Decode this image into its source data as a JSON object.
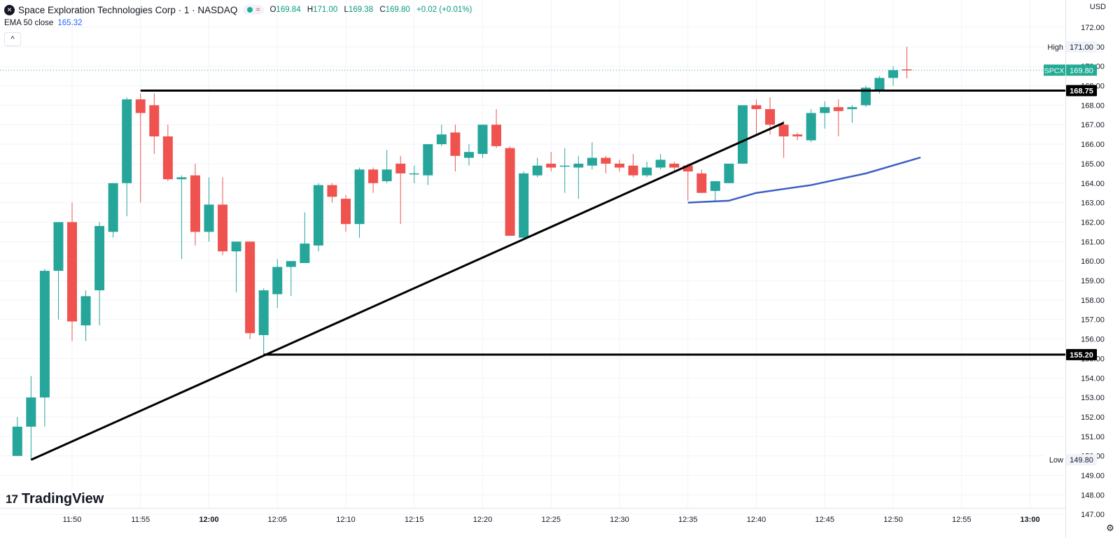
{
  "header": {
    "logo_glyph": "✕",
    "title": "Space Exploration Technologies Corp · 1 · NASDAQ",
    "signal_glyph": "≈",
    "o_label": "O",
    "o": "169.84",
    "h_label": "H",
    "h": "171.00",
    "l_label": "L",
    "l": "169.38",
    "c_label": "C",
    "c": "169.80",
    "change": "+0.02 (+0.01%)"
  },
  "indicator": {
    "label": "EMA 50 close",
    "value": "165.32"
  },
  "collapse_glyph": "^",
  "currency": "USD",
  "brand": {
    "mark": "17",
    "name": "TradingView"
  },
  "settings_icon": "gear-icon",
  "colors": {
    "up": "#26a69a",
    "down": "#ef5350",
    "ema": "#3d5fc4",
    "trend": "#000000",
    "last_price": "#22ab94"
  },
  "chart_data": {
    "type": "candlestick",
    "symbol": "SPCX",
    "x_ticks": [
      "11:50",
      "11:55",
      "12:00",
      "12:05",
      "12:10",
      "12:15",
      "12:20",
      "12:25",
      "12:30",
      "12:35",
      "12:40",
      "12:45",
      "12:50",
      "12:55",
      "13:00"
    ],
    "y_ticks": [
      "147.00",
      "148.00",
      "149.00",
      "150.00",
      "151.00",
      "152.00",
      "153.00",
      "154.00",
      "155.00",
      "156.00",
      "157.00",
      "158.00",
      "159.00",
      "160.00",
      "161.00",
      "162.00",
      "163.00",
      "164.00",
      "165.00",
      "166.00",
      "167.00",
      "168.00",
      "169.00",
      "170.00",
      "171.00",
      "172.00"
    ],
    "ylim": [
      146.4,
      172.7
    ],
    "candles": [
      {
        "t": "11:46",
        "o": 150.0,
        "h": 152.0,
        "l": 150.0,
        "c": 151.5
      },
      {
        "t": "11:47",
        "o": 151.5,
        "h": 154.1,
        "l": 149.8,
        "c": 153.0
      },
      {
        "t": "11:48",
        "o": 153.0,
        "h": 159.6,
        "l": 151.5,
        "c": 159.5
      },
      {
        "t": "11:49",
        "o": 159.5,
        "h": 162.0,
        "l": 157.0,
        "c": 162.0
      },
      {
        "t": "11:50",
        "o": 162.0,
        "h": 163.0,
        "l": 155.9,
        "c": 156.9
      },
      {
        "t": "11:51",
        "o": 156.7,
        "h": 158.5,
        "l": 155.9,
        "c": 158.2
      },
      {
        "t": "11:52",
        "o": 158.5,
        "h": 162.0,
        "l": 156.7,
        "c": 161.8
      },
      {
        "t": "11:53",
        "o": 161.5,
        "h": 164.0,
        "l": 161.2,
        "c": 164.0
      },
      {
        "t": "11:54",
        "o": 164.0,
        "h": 168.4,
        "l": 162.3,
        "c": 168.3
      },
      {
        "t": "11:55",
        "o": 168.3,
        "h": 168.6,
        "l": 163.0,
        "c": 167.6
      },
      {
        "t": "11:56",
        "o": 168.0,
        "h": 168.6,
        "l": 165.5,
        "c": 166.4
      },
      {
        "t": "11:57",
        "o": 166.4,
        "h": 167.0,
        "l": 164.1,
        "c": 164.2
      },
      {
        "t": "11:58",
        "o": 164.2,
        "h": 164.4,
        "l": 160.1,
        "c": 164.3
      },
      {
        "t": "11:59",
        "o": 164.4,
        "h": 165.0,
        "l": 160.8,
        "c": 161.5
      },
      {
        "t": "12:00",
        "o": 161.5,
        "h": 164.3,
        "l": 161.0,
        "c": 162.9
      },
      {
        "t": "12:01",
        "o": 162.9,
        "h": 164.3,
        "l": 160.3,
        "c": 160.5
      },
      {
        "t": "12:02",
        "o": 160.5,
        "h": 161.0,
        "l": 158.4,
        "c": 161.0
      },
      {
        "t": "12:03",
        "o": 161.0,
        "h": 161.0,
        "l": 156.0,
        "c": 156.3
      },
      {
        "t": "12:04",
        "o": 156.2,
        "h": 158.6,
        "l": 155.2,
        "c": 158.5
      },
      {
        "t": "12:05",
        "o": 158.3,
        "h": 160.1,
        "l": 157.6,
        "c": 159.7
      },
      {
        "t": "12:06",
        "o": 159.7,
        "h": 160.0,
        "l": 158.2,
        "c": 160.0
      },
      {
        "t": "12:07",
        "o": 159.9,
        "h": 162.5,
        "l": 159.9,
        "c": 160.9
      },
      {
        "t": "12:08",
        "o": 160.8,
        "h": 164.0,
        "l": 160.5,
        "c": 163.9
      },
      {
        "t": "12:09",
        "o": 163.9,
        "h": 164.0,
        "l": 163.0,
        "c": 163.3
      },
      {
        "t": "12:10",
        "o": 163.2,
        "h": 163.4,
        "l": 161.5,
        "c": 161.9
      },
      {
        "t": "12:11",
        "o": 161.9,
        "h": 164.8,
        "l": 161.2,
        "c": 164.7
      },
      {
        "t": "12:12",
        "o": 164.7,
        "h": 164.8,
        "l": 163.5,
        "c": 164.0
      },
      {
        "t": "12:13",
        "o": 164.1,
        "h": 165.7,
        "l": 164.0,
        "c": 164.7
      },
      {
        "t": "12:14",
        "o": 165.0,
        "h": 165.4,
        "l": 161.9,
        "c": 164.5
      },
      {
        "t": "12:15",
        "o": 164.5,
        "h": 164.9,
        "l": 164.0,
        "c": 164.5
      },
      {
        "t": "12:16",
        "o": 164.4,
        "h": 166.0,
        "l": 163.9,
        "c": 166.0
      },
      {
        "t": "12:17",
        "o": 166.0,
        "h": 167.0,
        "l": 165.9,
        "c": 166.5
      },
      {
        "t": "12:18",
        "o": 166.6,
        "h": 167.0,
        "l": 164.6,
        "c": 165.4
      },
      {
        "t": "12:19",
        "o": 165.3,
        "h": 166.0,
        "l": 164.9,
        "c": 165.6
      },
      {
        "t": "12:20",
        "o": 165.5,
        "h": 167.0,
        "l": 165.3,
        "c": 167.0
      },
      {
        "t": "12:21",
        "o": 167.0,
        "h": 167.8,
        "l": 165.8,
        "c": 165.9
      },
      {
        "t": "12:22",
        "o": 165.8,
        "h": 165.9,
        "l": 161.3,
        "c": 161.3
      },
      {
        "t": "12:23",
        "o": 161.2,
        "h": 164.6,
        "l": 161.2,
        "c": 164.5
      },
      {
        "t": "12:24",
        "o": 164.4,
        "h": 165.3,
        "l": 164.3,
        "c": 164.9
      },
      {
        "t": "12:25",
        "o": 165.0,
        "h": 165.6,
        "l": 164.6,
        "c": 164.8
      },
      {
        "t": "12:26",
        "o": 164.9,
        "h": 165.8,
        "l": 163.5,
        "c": 164.9
      },
      {
        "t": "12:27",
        "o": 164.8,
        "h": 165.4,
        "l": 163.2,
        "c": 165.0
      },
      {
        "t": "12:28",
        "o": 164.9,
        "h": 166.1,
        "l": 164.7,
        "c": 165.3
      },
      {
        "t": "12:29",
        "o": 165.3,
        "h": 165.4,
        "l": 164.5,
        "c": 165.0
      },
      {
        "t": "12:30",
        "o": 165.0,
        "h": 165.2,
        "l": 164.6,
        "c": 164.8
      },
      {
        "t": "12:31",
        "o": 164.9,
        "h": 165.5,
        "l": 164.3,
        "c": 164.4
      },
      {
        "t": "12:32",
        "o": 164.4,
        "h": 165.1,
        "l": 164.3,
        "c": 164.8
      },
      {
        "t": "12:33",
        "o": 164.8,
        "h": 165.5,
        "l": 164.7,
        "c": 165.2
      },
      {
        "t": "12:34",
        "o": 165.0,
        "h": 165.1,
        "l": 164.6,
        "c": 164.8
      },
      {
        "t": "12:35",
        "o": 164.9,
        "h": 165.0,
        "l": 163.1,
        "c": 164.6
      },
      {
        "t": "12:36",
        "o": 164.5,
        "h": 164.7,
        "l": 163.5,
        "c": 163.5
      },
      {
        "t": "12:37",
        "o": 163.6,
        "h": 164.1,
        "l": 163.1,
        "c": 164.1
      },
      {
        "t": "12:38",
        "o": 164.0,
        "h": 165.0,
        "l": 164.0,
        "c": 165.0
      },
      {
        "t": "12:39",
        "o": 165.0,
        "h": 168.0,
        "l": 165.0,
        "c": 168.0
      },
      {
        "t": "12:40",
        "o": 168.0,
        "h": 168.3,
        "l": 166.5,
        "c": 167.8
      },
      {
        "t": "12:41",
        "o": 167.8,
        "h": 168.4,
        "l": 166.5,
        "c": 167.0
      },
      {
        "t": "12:42",
        "o": 167.0,
        "h": 167.2,
        "l": 165.3,
        "c": 166.4
      },
      {
        "t": "12:43",
        "o": 166.5,
        "h": 166.6,
        "l": 166.2,
        "c": 166.4
      },
      {
        "t": "12:44",
        "o": 166.2,
        "h": 167.8,
        "l": 166.1,
        "c": 167.6
      },
      {
        "t": "12:45",
        "o": 167.6,
        "h": 168.2,
        "l": 166.8,
        "c": 167.9
      },
      {
        "t": "12:46",
        "o": 167.9,
        "h": 168.3,
        "l": 166.4,
        "c": 167.7
      },
      {
        "t": "12:47",
        "o": 167.8,
        "h": 168.0,
        "l": 167.1,
        "c": 167.9
      },
      {
        "t": "12:48",
        "o": 168.0,
        "h": 169.0,
        "l": 167.9,
        "c": 168.9
      },
      {
        "t": "12:49",
        "o": 168.8,
        "h": 169.5,
        "l": 168.6,
        "c": 169.4
      },
      {
        "t": "12:50",
        "o": 169.4,
        "h": 170.0,
        "l": 169.0,
        "c": 169.8
      },
      {
        "t": "12:51",
        "o": 169.84,
        "h": 171.0,
        "l": 169.38,
        "c": 169.8
      }
    ],
    "ema_50": [
      {
        "t": "12:35",
        "v": 163.0
      },
      {
        "t": "12:38",
        "v": 163.1
      },
      {
        "t": "12:40",
        "v": 163.5
      },
      {
        "t": "12:44",
        "v": 163.9
      },
      {
        "t": "12:48",
        "v": 164.5
      },
      {
        "t": "12:52",
        "v": 165.32
      }
    ],
    "horizontal_lines": [
      {
        "price": 168.75,
        "from": "11:55",
        "label": "168.75"
      },
      {
        "price": 155.2,
        "from": "12:04",
        "label": "155.20"
      }
    ],
    "trend_lines": [
      {
        "from": {
          "t": "11:47",
          "p": 149.8
        },
        "to": {
          "t": "12:42",
          "p": 167.1
        }
      }
    ],
    "markers": [
      {
        "label": "High",
        "value": "171.00",
        "price": 171.0
      },
      {
        "label": "Low",
        "value": "149.80",
        "price": 149.8
      }
    ],
    "last_price": {
      "symbol": "SPCX",
      "value": "169.80",
      "price": 169.8
    }
  }
}
